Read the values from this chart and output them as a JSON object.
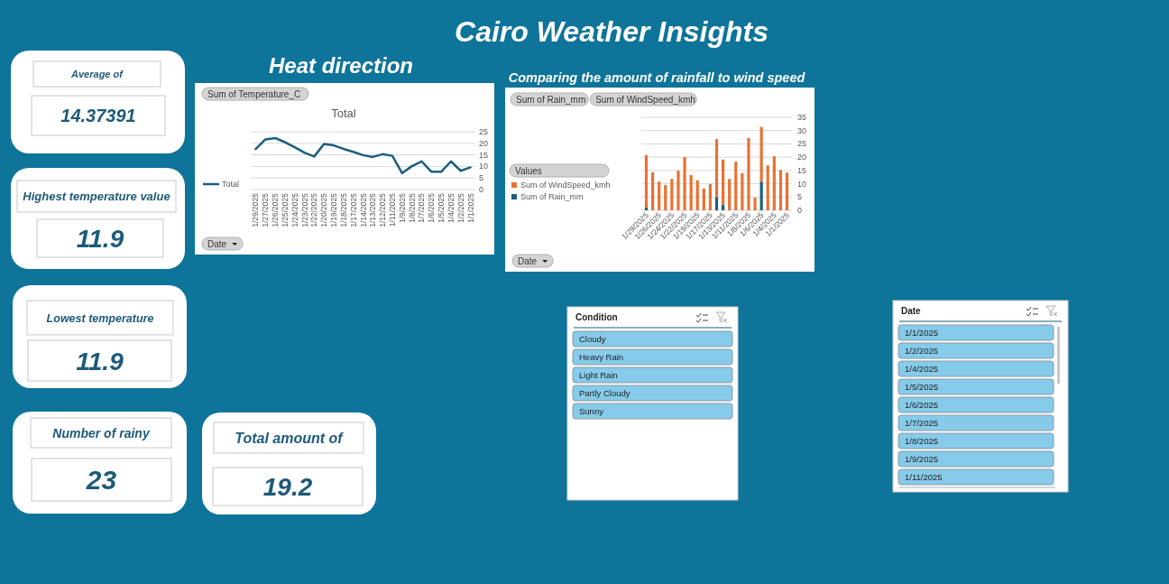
{
  "chart_data": [
    {
      "type": "other",
      "title": "Cairo Weather Insights"
    },
    {
      "type": "line",
      "title": "Heat direction",
      "subtitle": "Total",
      "annotations": [
        "Sum of Temperature_C",
        "Date"
      ],
      "categories": [
        "1/29/2025",
        "1/27/2025",
        "1/26/2025",
        "1/25/2025",
        "1/24/2025",
        "1/23/2025",
        "1/22/2025",
        "1/20/2025",
        "1/19/2025",
        "1/18/2025",
        "1/17/2025",
        "1/14/2025",
        "1/13/2025",
        "1/12/2025",
        "1/11/2025",
        "1/9/2025",
        "1/8/2025",
        "1/7/2025",
        "1/6/2025",
        "1/5/2025",
        "1/4/2025",
        "1/2/2025",
        "1/1/2025"
      ],
      "series": [
        {
          "name": "Total",
          "color": "#1b5e7e",
          "values": [
            17.5,
            21.7,
            22.3,
            20.5,
            18.3,
            16,
            14.3,
            19.7,
            19.1,
            17.6,
            16.3,
            14.9,
            14.1,
            15.3,
            14.6,
            7.1,
            10.1,
            12.2,
            7.7,
            7.7,
            12.2,
            8.1,
            9.6
          ]
        }
      ],
      "ylim": [
        0,
        25
      ],
      "yticks": [
        0,
        5,
        10,
        15,
        20,
        25
      ],
      "grid": "y",
      "legend": "left"
    },
    {
      "type": "bar",
      "stacked": true,
      "title": "Comparing the amount of rainfall to wind speed",
      "annotations": [
        "Sum of Rain_mm",
        "Sum of WindSpeed_kmh",
        "Date"
      ],
      "legend_title": "Values",
      "categories": [
        "1/29/2025",
        null,
        "1/26/2025",
        null,
        "1/24/2025",
        null,
        "1/22/2025",
        null,
        "1/19/2025",
        null,
        "1/17/2025",
        null,
        "1/13/2025",
        null,
        "1/11/2025",
        null,
        "1/8/2025",
        null,
        "1/6/2025",
        null,
        "1/4/2025",
        null,
        "1/1/2025"
      ],
      "series": [
        {
          "name": "Sum of Rain_mm",
          "color": "#1b5e7e",
          "values": [
            1.2,
            0,
            0,
            0,
            0,
            0,
            0,
            0,
            0,
            0,
            0,
            5.0,
            2.2,
            0,
            0,
            0,
            0,
            0,
            10.8,
            0,
            0,
            0,
            0
          ]
        },
        {
          "name": "Sum of WindSpeed_kmh",
          "color": "#e97132",
          "values": [
            19.6,
            14.3,
            10.8,
            9.5,
            11.8,
            14.9,
            20.1,
            13.3,
            11.3,
            8.2,
            9.9,
            21.8,
            16.9,
            11.8,
            18.3,
            14.0,
            27.2,
            4.8,
            20.6,
            16.9,
            20.3,
            15.2,
            14.2
          ]
        }
      ],
      "ylim": [
        0,
        35
      ],
      "yticks": [
        0,
        5,
        10,
        15,
        20,
        25,
        30,
        35
      ],
      "grid": "y",
      "legend": "left"
    },
    {
      "type": "other",
      "title": "Average of",
      "annotations": [
        "14.37391"
      ]
    },
    {
      "type": "other",
      "title": "Highest temperature value",
      "annotations": [
        "11.9"
      ]
    },
    {
      "type": "other",
      "title": "Lowest temperature",
      "annotations": [
        "11.9"
      ]
    },
    {
      "type": "other",
      "title": "Number of rainy",
      "annotations": [
        "23"
      ]
    },
    {
      "type": "other",
      "title": "Total amount of",
      "annotations": [
        "19.2"
      ]
    },
    {
      "type": "other",
      "title": "Condition",
      "annotations": [
        "Cloudy",
        "Heavy Rain",
        "Light Rain",
        "Partly Cloudy",
        "Sunny"
      ]
    },
    {
      "type": "other",
      "title": "Date",
      "annotations": [
        "1/1/2025",
        "1/2/2025",
        "1/4/2025",
        "1/5/2025",
        "1/6/2025",
        "1/7/2025",
        "1/8/2025",
        "1/9/2025",
        "1/11/2025"
      ]
    }
  ]
}
